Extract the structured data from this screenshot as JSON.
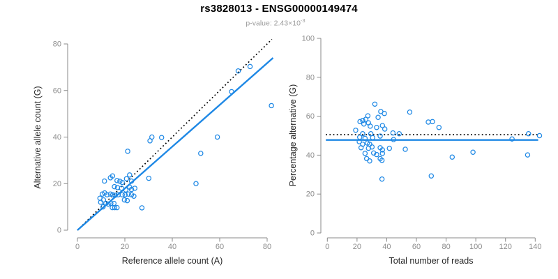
{
  "header": {
    "title": "rs3828013 - ENSG00000149474",
    "subtitle_prefix": "p-value: 2.43×10",
    "subtitle_exponent": "-3"
  },
  "palette": {
    "accent": "#1E88E5",
    "identity_line": "#000000",
    "tick_label": "#8c8c8c",
    "axis_line": "#888888",
    "title": "#000000",
    "subtitle": "#9b9b9b"
  },
  "chart_data": [
    {
      "type": "scatter",
      "name": "allele-counts",
      "xlabel": "Reference allele count (A)",
      "ylabel": "Alternative allele count (G)",
      "xlim": [
        0,
        82
      ],
      "ylim": [
        0,
        82
      ],
      "xticks": [
        0,
        20,
        40,
        60,
        80
      ],
      "yticks": [
        0,
        20,
        40,
        60,
        80
      ],
      "grid": false,
      "marker": "open-circle",
      "lines": [
        {
          "name": "identity-dotted",
          "x1": 0,
          "y1": 0,
          "x2": 82,
          "y2": 82,
          "style": "dotted",
          "color": "#000000"
        },
        {
          "name": "fit-line",
          "x1": 0,
          "y1": 0,
          "x2": 82.5,
          "y2": 74.0,
          "style": "solid",
          "color": "#1E88E5"
        }
      ],
      "points": [
        [
          11.4,
          21.1
        ],
        [
          13.9,
          22.5
        ],
        [
          14.8,
          23.3
        ],
        [
          16.7,
          21.3
        ],
        [
          17.9,
          21.0
        ],
        [
          18.9,
          20.5
        ],
        [
          20.7,
          22.1
        ],
        [
          22.0,
          23.7
        ],
        [
          22.8,
          21.1
        ],
        [
          15.6,
          18.7
        ],
        [
          16.9,
          18.3
        ],
        [
          18.6,
          18.0
        ],
        [
          22.0,
          18.5
        ],
        [
          22.8,
          17.5
        ],
        [
          24.2,
          18.0
        ],
        [
          20.4,
          17.3
        ],
        [
          10.5,
          15.5
        ],
        [
          11.5,
          16.0
        ],
        [
          12.5,
          15.2
        ],
        [
          13.9,
          15.5
        ],
        [
          14.9,
          15.2
        ],
        [
          15.9,
          15.0
        ],
        [
          17.2,
          15.2
        ],
        [
          18.9,
          15.2
        ],
        [
          20.1,
          15.2
        ],
        [
          21.5,
          15.5
        ],
        [
          22.8,
          15.2
        ],
        [
          23.8,
          14.6
        ],
        [
          9.5,
          13.7
        ],
        [
          11.0,
          13.0
        ],
        [
          19.8,
          13.0
        ],
        [
          21.0,
          12.7
        ],
        [
          9.8,
          12.0
        ],
        [
          12.0,
          11.5
        ],
        [
          13.0,
          11.2
        ],
        [
          14.1,
          11.5
        ],
        [
          15.4,
          11.5
        ],
        [
          10.8,
          10.0
        ],
        [
          14.7,
          9.7
        ],
        [
          15.7,
          9.7
        ],
        [
          16.7,
          9.7
        ],
        [
          27.2,
          9.6
        ],
        [
          30.1,
          22.3
        ],
        [
          21.2,
          33.9
        ],
        [
          30.6,
          38.4
        ],
        [
          31.4,
          40.0
        ],
        [
          35.5,
          39.8
        ],
        [
          59.0,
          40.0
        ],
        [
          52.0,
          33.0
        ],
        [
          50.0,
          20.0
        ],
        [
          65.0,
          59.5
        ],
        [
          67.8,
          68.4
        ],
        [
          72.8,
          70.3
        ],
        [
          81.8,
          53.5
        ]
      ]
    },
    {
      "type": "scatter",
      "name": "percentage-vs-coverage",
      "xlabel": "Total number of reads",
      "ylabel": "Percentage alternative (G)",
      "xlim": [
        0,
        145
      ],
      "ylim": [
        0,
        100
      ],
      "xticks": [
        0,
        20,
        40,
        60,
        80,
        100,
        120,
        140
      ],
      "yticks": [
        0,
        20,
        40,
        60,
        80,
        100
      ],
      "grid": false,
      "marker": "open-circle",
      "lines": [
        {
          "name": "expected-dotted",
          "x1": -1,
          "y1": 50.5,
          "x2": 142,
          "y2": 50.5,
          "style": "dotted",
          "color": "#000000"
        },
        {
          "name": "fit-line",
          "x1": -1,
          "y1": 47.8,
          "x2": 142,
          "y2": 47.8,
          "style": "solid",
          "color": "#1E88E5"
        }
      ],
      "points": [
        [
          32.0,
          66.2
        ],
        [
          36.0,
          62.4
        ],
        [
          38.4,
          61.4
        ],
        [
          55.5,
          62.1
        ],
        [
          34.2,
          59.4
        ],
        [
          27.3,
          60.2
        ],
        [
          25.9,
          58.4
        ],
        [
          23.8,
          57.8
        ],
        [
          22.0,
          57.2
        ],
        [
          68.0,
          57.0
        ],
        [
          70.8,
          57.2
        ],
        [
          75.2,
          54.2
        ],
        [
          24.6,
          56.0
        ],
        [
          27.7,
          56.6
        ],
        [
          28.9,
          54.9
        ],
        [
          33.2,
          54.2
        ],
        [
          37.1,
          55.2
        ],
        [
          38.7,
          53.4
        ],
        [
          19.1,
          52.8
        ],
        [
          23.8,
          51.0
        ],
        [
          29.3,
          51.0
        ],
        [
          35.6,
          49.8
        ],
        [
          44.2,
          51.4
        ],
        [
          48.4,
          51.0
        ],
        [
          135.5,
          51.0
        ],
        [
          142.9,
          50.0
        ],
        [
          21.8,
          49.2
        ],
        [
          25.4,
          48.6
        ],
        [
          30.5,
          49.0
        ],
        [
          124.4,
          48.3
        ],
        [
          21.5,
          46.9
        ],
        [
          23.8,
          45.6
        ],
        [
          27.0,
          46.2
        ],
        [
          28.5,
          45.6
        ],
        [
          44.6,
          48.0
        ],
        [
          22.7,
          43.8
        ],
        [
          27.7,
          43.5
        ],
        [
          30.1,
          44.2
        ],
        [
          35.6,
          43.8
        ],
        [
          37.1,
          42.7
        ],
        [
          41.8,
          43.5
        ],
        [
          52.5,
          43.0
        ],
        [
          25.4,
          40.9
        ],
        [
          31.2,
          41.1
        ],
        [
          33.2,
          40.3
        ],
        [
          37.1,
          40.9
        ],
        [
          98.1,
          41.5
        ],
        [
          84.1,
          39.0
        ],
        [
          134.9,
          40.1
        ],
        [
          26.5,
          38.2
        ],
        [
          28.5,
          37.0
        ],
        [
          35.6,
          38.2
        ],
        [
          36.8,
          37.3
        ],
        [
          36.8,
          27.7
        ],
        [
          70.0,
          29.3
        ]
      ]
    }
  ]
}
